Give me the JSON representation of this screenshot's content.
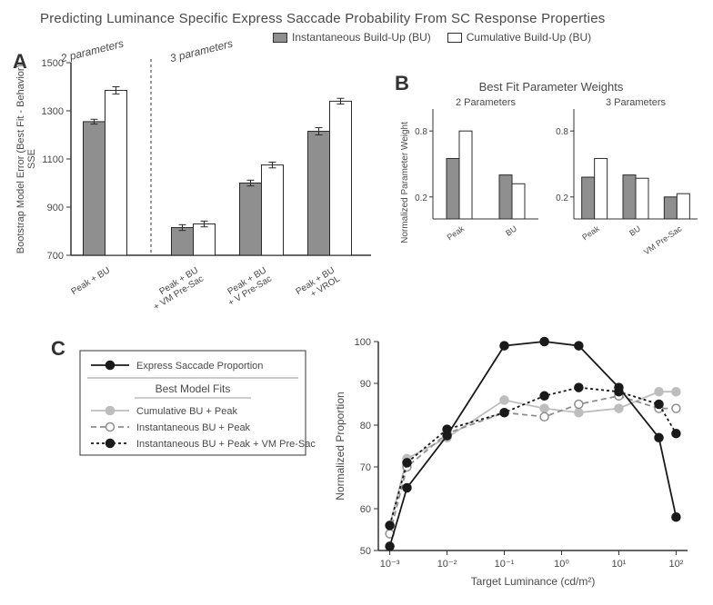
{
  "title": "Predicting Luminance Specific Express Saccade Probability From  SC Response Properties",
  "colors": {
    "fill_gray": "#8f8f8f",
    "fill_white": "#ffffff",
    "stroke": "#2b2b2b",
    "text": "#4a4a4a",
    "axis": "#333333"
  },
  "legend_top": {
    "inst": "Instantaneous Build-Up (BU)",
    "cum": "Cumulative Build-Up (BU)"
  },
  "panelA": {
    "label": "A",
    "sec2": "2 parameters",
    "sec3": "3 parameters",
    "yaxis": "Bootstrap Model Error (Best Fit - Behavior)\nSSE",
    "ylim": [
      700,
      1500
    ],
    "yticks": [
      700,
      900,
      1100,
      1300,
      1500
    ],
    "categories": [
      "Peak + BU",
      "Peak + BU\n+ VM Pre-Sac",
      "Peak + BU\n+ V Pre-Sac",
      "Peak + BU\n+ VROL"
    ],
    "bars": [
      {
        "gray": 1255,
        "white": 1385,
        "eg": 10,
        "ew": 15
      },
      {
        "gray": 815,
        "white": 830,
        "eg": 12,
        "ew": 12
      },
      {
        "gray": 1000,
        "white": 1075,
        "eg": 12,
        "ew": 12
      },
      {
        "gray": 1215,
        "white": 1340,
        "eg": 15,
        "ew": 12
      }
    ]
  },
  "panelB": {
    "label": "B",
    "title": "Best Fit Parameter Weights",
    "yaxis": "Normalized Parameter Weight",
    "sub2": "2 Parameters",
    "sub3": "3 Parameters",
    "yticks": [
      0.2,
      0.8
    ],
    "ylim": [
      0,
      1.0
    ],
    "data2": {
      "cats": [
        "Peak",
        "BU"
      ],
      "gray": [
        0.55,
        0.4
      ],
      "white": [
        0.8,
        0.32
      ]
    },
    "data3": {
      "cats": [
        "Peak",
        "BU",
        "VM Pre-Sac"
      ],
      "gray": [
        0.38,
        0.4,
        0.2
      ],
      "white": [
        0.55,
        0.37,
        0.23
      ]
    }
  },
  "panelC": {
    "label": "C",
    "xaxis": "Target Luminance (cd/m²)",
    "yaxis": "Normalized Proportion",
    "ylim": [
      50,
      100
    ],
    "yticks": [
      50,
      60,
      70,
      80,
      90,
      100
    ],
    "xticks_log": [
      -3,
      -2,
      -1,
      0,
      1,
      2
    ],
    "xtick_labels": [
      "10⁻³",
      "10⁻²",
      "10⁻¹",
      "10⁰",
      "10¹",
      "10²"
    ],
    "legend": {
      "exp": "Express Saccade Proportion",
      "heading": "Best Model Fits",
      "cum": "Cumulative BU + Peak",
      "inst": "Instantaneous BU + Peak",
      "inst_vm": "Instantaneous BU + Peak + VM Pre-Sac"
    },
    "x_log": [
      -3,
      -2.7,
      -2,
      -1,
      -0.3,
      0.3,
      1,
      1.7,
      2
    ],
    "series": {
      "express": {
        "y": [
          51,
          65,
          77.5,
          99,
          100,
          99,
          89,
          77,
          58
        ],
        "color": "#1a1a1a",
        "dash": "",
        "marker_fill": "#1a1a1a"
      },
      "cum": {
        "y": [
          56,
          72,
          77,
          86,
          84,
          83,
          84,
          88,
          88
        ],
        "color": "#bdbdbd",
        "dash": "",
        "marker_fill": "#bdbdbd"
      },
      "inst": {
        "y": [
          54,
          70,
          78,
          83,
          82,
          85,
          87,
          84,
          84
        ],
        "color": "#8f8f8f",
        "dash": "6,4",
        "marker_fill": "#ffffff",
        "marker_stroke": "#8f8f8f"
      },
      "inst_vm": {
        "y": [
          56,
          71,
          79,
          83,
          87,
          89,
          88,
          85,
          78
        ],
        "color": "#1a1a1a",
        "dash": "3,3",
        "marker_fill": "#1a1a1a"
      }
    }
  }
}
